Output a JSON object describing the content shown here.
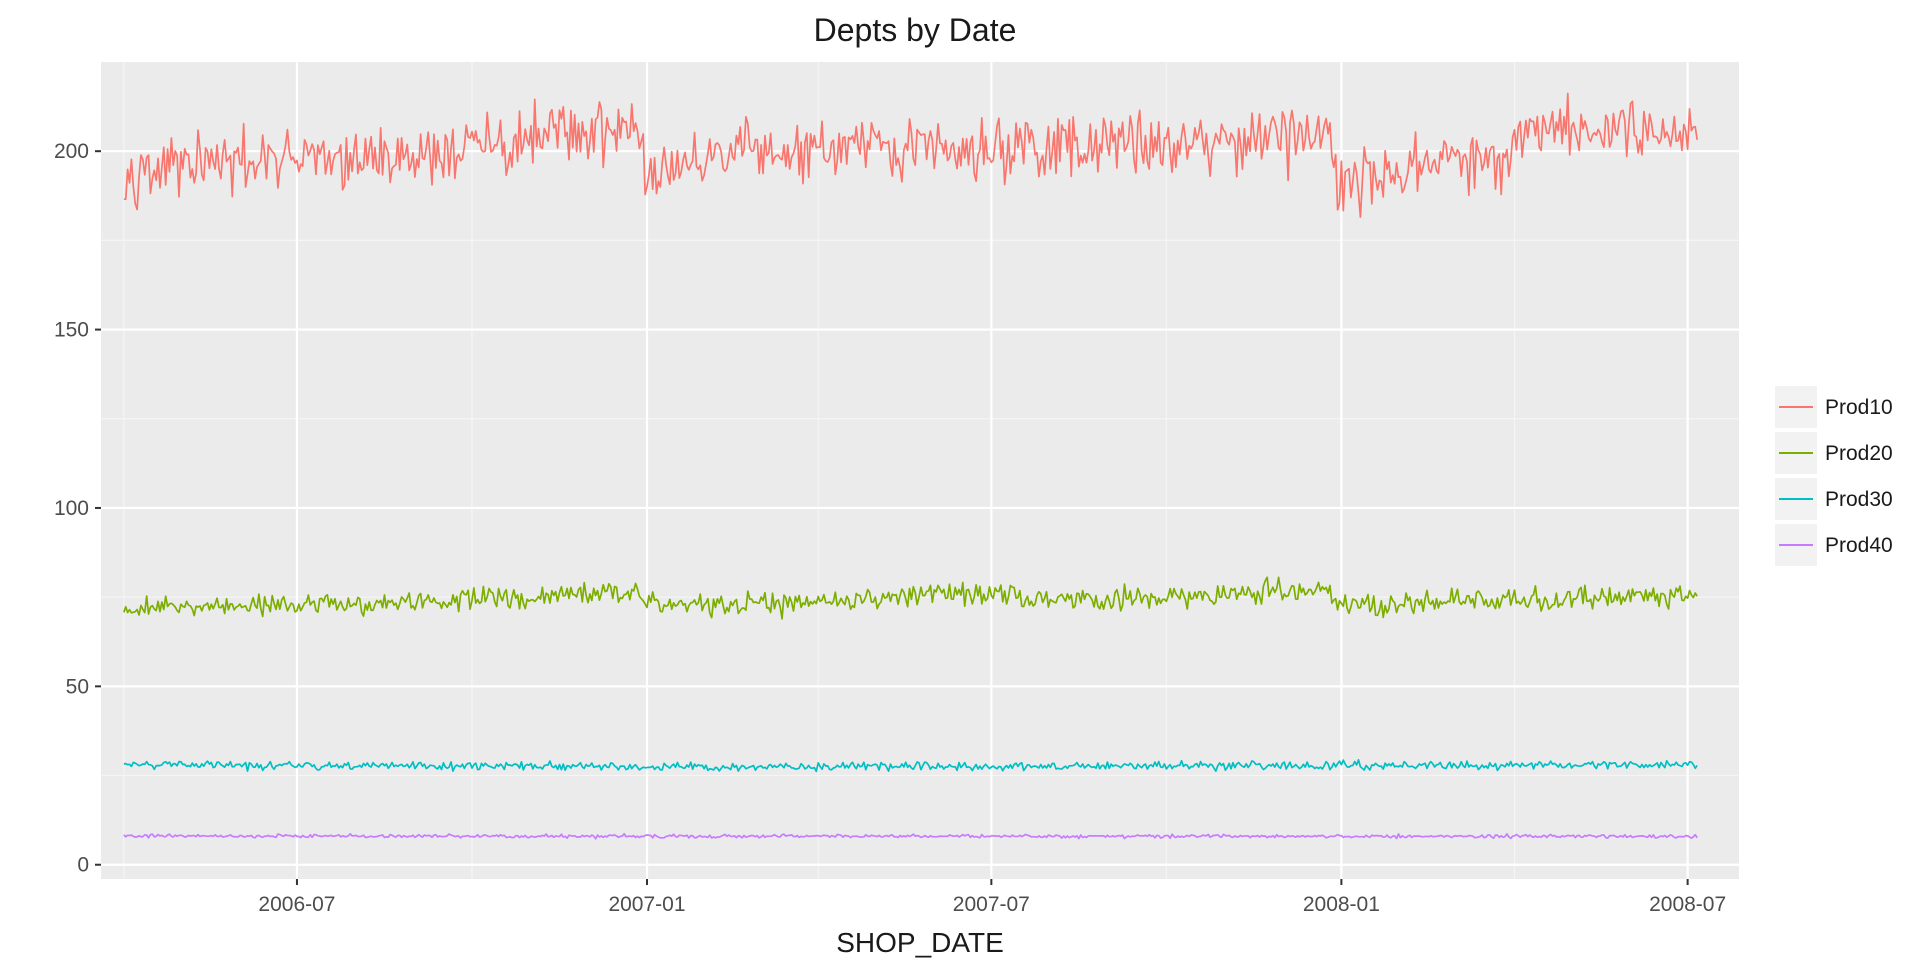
{
  "chart_data": {
    "type": "line",
    "title": "Depts by Date",
    "xlabel": "SHOP_DATE",
    "ylabel": "",
    "x_range": [
      "2006-03-20",
      "2008-07-28"
    ],
    "x_data_range": [
      "2006-04-01",
      "2008-07-06"
    ],
    "ylim": [
      -4,
      225
    ],
    "x_ticks": [
      {
        "date": "2006-07-01",
        "label": "2006-07"
      },
      {
        "date": "2007-01-01",
        "label": "2007-01"
      },
      {
        "date": "2007-07-01",
        "label": "2007-07"
      },
      {
        "date": "2008-01-01",
        "label": "2008-01"
      },
      {
        "date": "2008-07-01",
        "label": "2008-07"
      }
    ],
    "x_minor_ticks": [
      "2006-04-01",
      "2006-10-01",
      "2007-04-01",
      "2007-10-01",
      "2008-04-01"
    ],
    "y_ticks": [
      0,
      50,
      100,
      150,
      200
    ],
    "y_minor_ticks": [
      25,
      75,
      125,
      175
    ],
    "grid": true,
    "legend_position": "right",
    "panel_background": "#ebebeb",
    "series": [
      {
        "name": "Prod10",
        "color": "#F8766D",
        "daily_noise": 6,
        "points": [
          {
            "date": "2006-04-01",
            "value": 195
          },
          {
            "date": "2006-05-15",
            "value": 196
          },
          {
            "date": "2006-07-01",
            "value": 197
          },
          {
            "date": "2006-09-01",
            "value": 199
          },
          {
            "date": "2006-11-01",
            "value": 203
          },
          {
            "date": "2006-12-25",
            "value": 208
          },
          {
            "date": "2007-01-01",
            "value": 193
          },
          {
            "date": "2007-02-15",
            "value": 199
          },
          {
            "date": "2007-04-01",
            "value": 200
          },
          {
            "date": "2007-07-01",
            "value": 201
          },
          {
            "date": "2007-10-01",
            "value": 202
          },
          {
            "date": "2007-12-25",
            "value": 206
          },
          {
            "date": "2008-01-01",
            "value": 190
          },
          {
            "date": "2008-02-15",
            "value": 197
          },
          {
            "date": "2008-03-31",
            "value": 197
          },
          {
            "date": "2008-04-07",
            "value": 207
          },
          {
            "date": "2008-07-06",
            "value": 206
          }
        ]
      },
      {
        "name": "Prod20",
        "color": "#7CAE00",
        "daily_noise": 2.2,
        "points": [
          {
            "date": "2006-04-01",
            "value": 72
          },
          {
            "date": "2006-07-01",
            "value": 73
          },
          {
            "date": "2006-10-01",
            "value": 74
          },
          {
            "date": "2006-12-25",
            "value": 77
          },
          {
            "date": "2007-01-01",
            "value": 73
          },
          {
            "date": "2007-03-15",
            "value": 73
          },
          {
            "date": "2007-06-01",
            "value": 76
          },
          {
            "date": "2007-09-01",
            "value": 74
          },
          {
            "date": "2007-12-25",
            "value": 77
          },
          {
            "date": "2008-01-01",
            "value": 73
          },
          {
            "date": "2008-04-01",
            "value": 74
          },
          {
            "date": "2008-07-06",
            "value": 76
          }
        ]
      },
      {
        "name": "Prod30",
        "color": "#00BFC4",
        "daily_noise": 0.8,
        "points": [
          {
            "date": "2006-04-01",
            "value": 28
          },
          {
            "date": "2007-01-01",
            "value": 27.5
          },
          {
            "date": "2008-07-06",
            "value": 28
          }
        ]
      },
      {
        "name": "Prod40",
        "color": "#C77CFF",
        "daily_noise": 0.35,
        "points": [
          {
            "date": "2006-04-01",
            "value": 8
          },
          {
            "date": "2008-07-06",
            "value": 8
          }
        ]
      }
    ]
  }
}
